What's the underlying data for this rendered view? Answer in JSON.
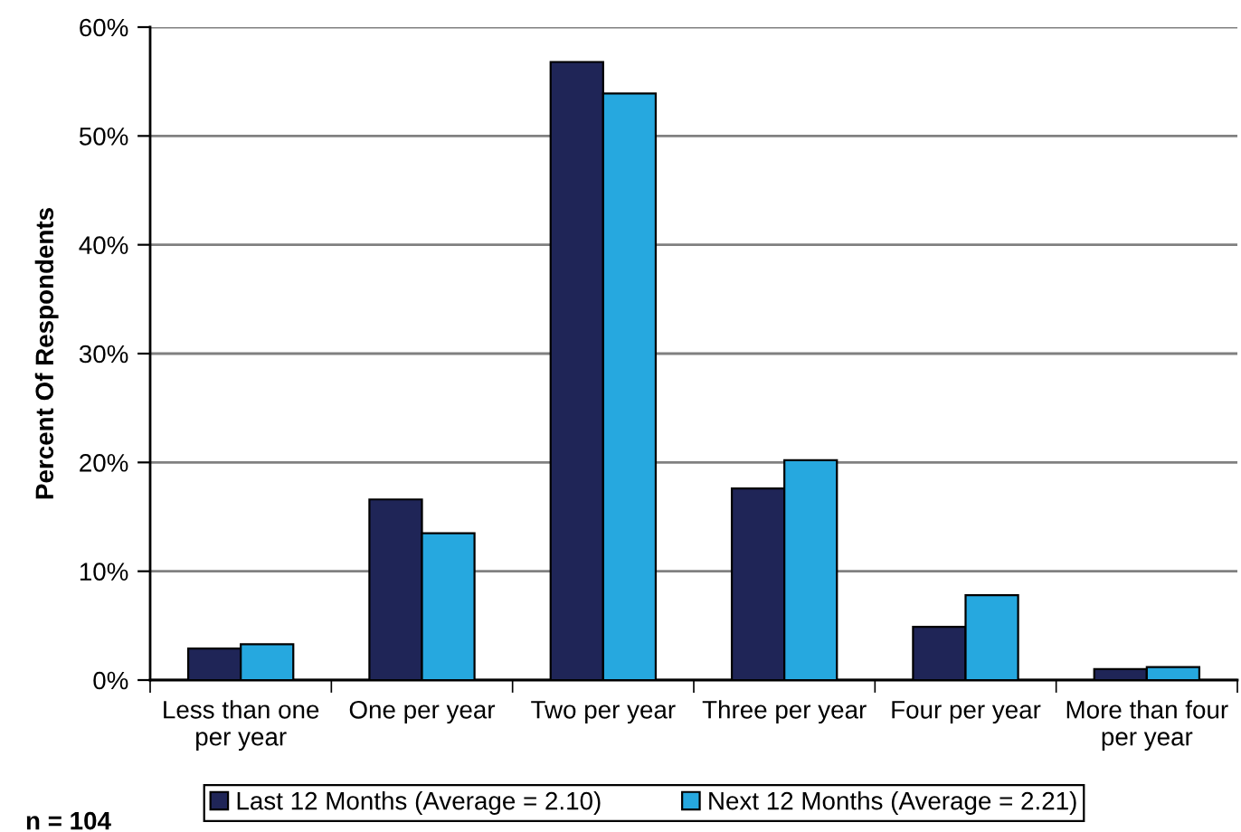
{
  "chart_data": {
    "type": "bar",
    "ylabel": "Percent Of Respondents",
    "categories": [
      "Less than one\nper year",
      "One per year",
      "Two per year",
      "Three per year",
      "Four per year",
      "More than four\nper year"
    ],
    "series": [
      {
        "name": "Last 12 Months (Average = 2.10)",
        "color": "#1f2557",
        "values": [
          2.9,
          16.6,
          56.8,
          17.6,
          4.9,
          1.0
        ]
      },
      {
        "name": "Next 12 Months (Average = 2.21)",
        "color": "#26a8df",
        "values": [
          3.3,
          13.5,
          53.9,
          20.2,
          7.8,
          1.2
        ]
      }
    ],
    "ylim": [
      0,
      60
    ],
    "yticks": [
      {
        "value": 0,
        "label": "0%"
      },
      {
        "value": 10,
        "label": "10%"
      },
      {
        "value": 20,
        "label": "20%"
      },
      {
        "value": 30,
        "label": "30%"
      },
      {
        "value": 40,
        "label": "40%"
      },
      {
        "value": 50,
        "label": "50%"
      },
      {
        "value": 60,
        "label": "60%"
      }
    ],
    "grid": "y",
    "legend": "bottom",
    "annotations": [
      "n = 104"
    ]
  }
}
